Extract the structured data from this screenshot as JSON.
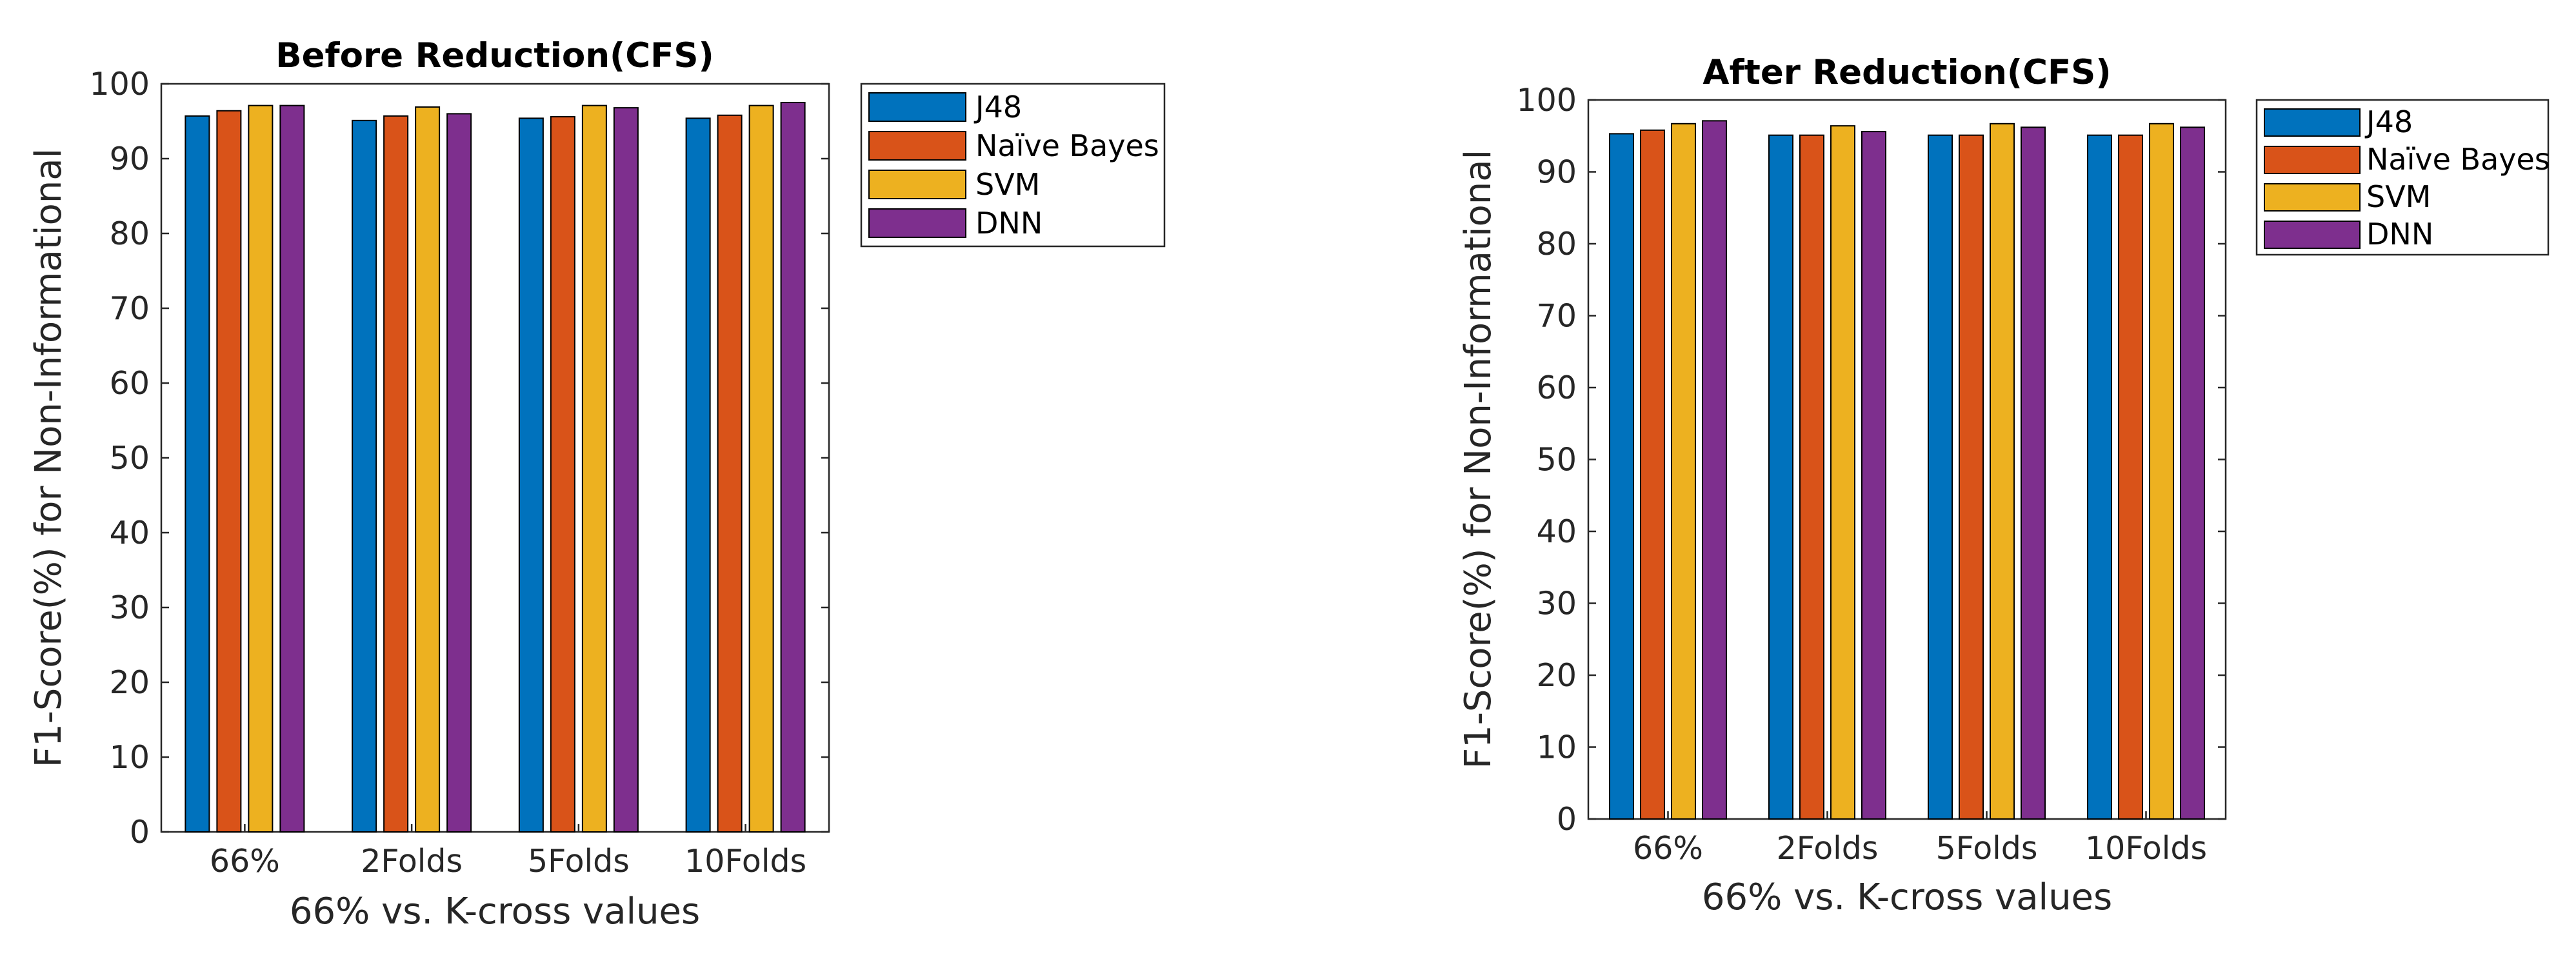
{
  "chart_data": [
    {
      "type": "bar",
      "title": "Before Reduction(CFS)",
      "xlabel": "66% vs. K-cross values",
      "ylabel": "F1-Score(%) for Non-Informational",
      "ylim": [
        0,
        100
      ],
      "yticks": [
        "0",
        "10",
        "20",
        "30",
        "40",
        "50",
        "60",
        "70",
        "80",
        "90",
        "100"
      ],
      "categories": [
        "66%",
        "2Folds",
        "5Folds",
        "10Folds"
      ],
      "legend_position": "outside-right",
      "series": [
        {
          "name": "J48",
          "color": "#0072BD",
          "values": [
            95.7,
            95.1,
            95.4,
            95.4
          ]
        },
        {
          "name": "Naïve Bayes",
          "color": "#D95319",
          "values": [
            96.4,
            95.7,
            95.6,
            95.8
          ]
        },
        {
          "name": "SVM",
          "color": "#EDB120",
          "values": [
            97.1,
            96.9,
            97.1,
            97.1
          ]
        },
        {
          "name": "DNN",
          "color": "#7E2F8E",
          "values": [
            97.1,
            96.0,
            96.8,
            97.5
          ]
        }
      ]
    },
    {
      "type": "bar",
      "title": "After Reduction(CFS)",
      "xlabel": "66% vs. K-cross values",
      "ylabel": "F1-Score(%) for Non-Informational",
      "ylim": [
        0,
        100
      ],
      "yticks": [
        "0",
        "10",
        "20",
        "30",
        "40",
        "50",
        "60",
        "70",
        "80",
        "90",
        "100"
      ],
      "categories": [
        "66%",
        "2Folds",
        "5Folds",
        "10Folds"
      ],
      "legend_position": "outside-right",
      "series": [
        {
          "name": "J48",
          "color": "#0072BD",
          "values": [
            95.3,
            95.1,
            95.1,
            95.1
          ]
        },
        {
          "name": "Naïve Bayes",
          "color": "#D95319",
          "values": [
            95.8,
            95.1,
            95.1,
            95.1
          ]
        },
        {
          "name": "SVM",
          "color": "#EDB120",
          "values": [
            96.7,
            96.4,
            96.7,
            96.7
          ]
        },
        {
          "name": "DNN",
          "color": "#7E2F8E",
          "values": [
            97.1,
            95.6,
            96.2,
            96.2
          ]
        }
      ]
    }
  ]
}
